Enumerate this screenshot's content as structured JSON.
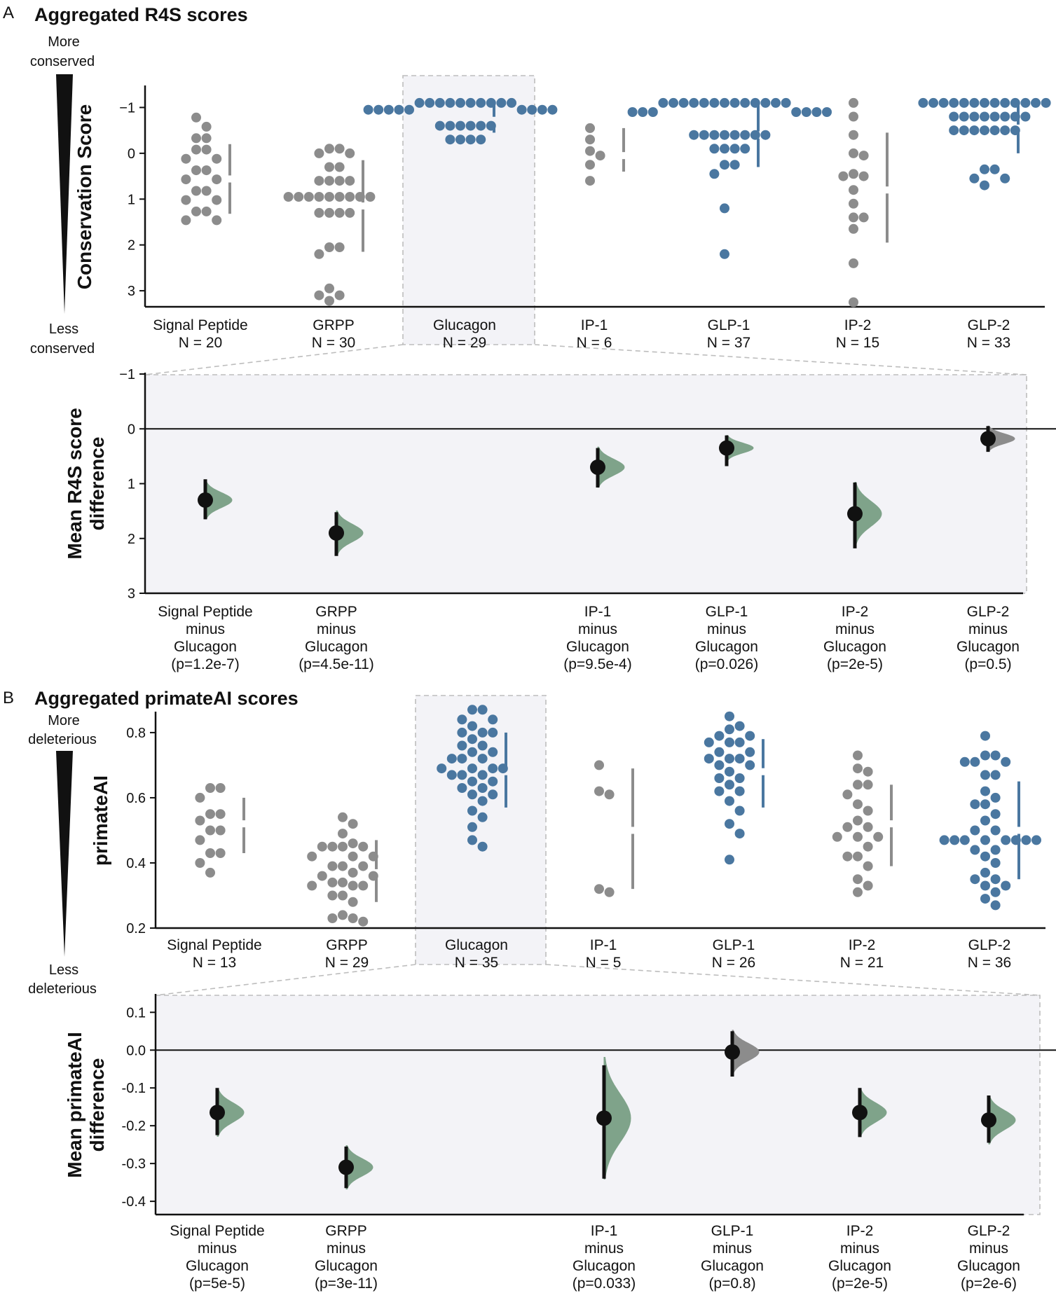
{
  "colors": {
    "grey": "#8c8c8c",
    "blue": "#4a77a0",
    "green": "#7fa38a",
    "grey_dist": "#9b9b9b",
    "black": "#111111"
  },
  "panels": {
    "a": {
      "letter": "A",
      "title": "Aggregated R4S scores",
      "side_top": [
        "More",
        "conserved"
      ],
      "side_bottom": [
        "Less",
        "conserved"
      ]
    },
    "b": {
      "letter": "B",
      "title": "Aggregated primateAI scores",
      "side_top": [
        "More",
        "deleterious"
      ],
      "side_bottom": [
        "Less",
        "deleterious"
      ]
    }
  },
  "chart_data": [
    {
      "id": "a_top",
      "type": "scatter",
      "title": "Aggregated R4S scores",
      "ylabel": "Conservation Score",
      "ylim": [
        3.35,
        -1.45
      ],
      "yticks": [
        -1,
        0,
        1,
        2,
        3
      ],
      "ytick_labels": [
        "−1",
        "0",
        "1",
        "2",
        "3"
      ],
      "reference": "Glucagon",
      "groups": [
        {
          "name": "Signal Peptide",
          "n_label": "N = 20",
          "color": "grey",
          "mean": 0.56,
          "ci": [
            -0.2,
            1.32
          ],
          "values": [
            -0.78,
            -0.58,
            -0.33,
            -0.33,
            -0.08,
            -0.08,
            0.12,
            0.12,
            0.37,
            0.37,
            0.57,
            0.57,
            0.82,
            0.82,
            1.02,
            1.02,
            1.27,
            1.27,
            1.46,
            1.46
          ]
        },
        {
          "name": "GRPP",
          "n_label": "N = 30",
          "color": "grey",
          "mean": 1.15,
          "ci": [
            0.15,
            2.15
          ],
          "values": [
            -0.1,
            -0.1,
            0.0,
            0.0,
            0.3,
            0.3,
            0.6,
            0.6,
            0.6,
            0.6,
            0.95,
            0.95,
            0.95,
            0.95,
            0.95,
            0.95,
            0.95,
            0.95,
            0.95,
            1.3,
            1.3,
            1.3,
            1.3,
            2.05,
            2.05,
            2.2,
            2.95,
            3.1,
            3.1,
            3.22
          ]
        },
        {
          "name": "Glucagon",
          "n_label": "N = 29",
          "color": "blue",
          "mean": -0.72,
          "ci": [
            -1.05,
            -0.45
          ],
          "values": [
            -1.1,
            -1.1,
            -1.1,
            -1.1,
            -1.1,
            -1.1,
            -1.1,
            -1.1,
            -1.1,
            -1.1,
            -0.95,
            -0.95,
            -0.95,
            -0.95,
            -0.95,
            -0.95,
            -0.95,
            -0.95,
            -0.95,
            -0.6,
            -0.6,
            -0.6,
            -0.6,
            -0.6,
            -0.6,
            -0.3,
            -0.3,
            -0.3,
            -0.3
          ]
        },
        {
          "name": "IP-1",
          "n_label": "N = 6",
          "color": "grey",
          "mean": 0.05,
          "ci": [
            -0.55,
            0.4
          ],
          "values": [
            -0.55,
            -0.3,
            -0.05,
            0.05,
            0.25,
            0.6
          ]
        },
        {
          "name": "GLP-1",
          "n_label": "N = 37",
          "color": "blue",
          "mean": -0.4,
          "ci": [
            -1.1,
            0.3
          ],
          "values": [
            -1.1,
            -1.1,
            -1.1,
            -1.1,
            -1.1,
            -1.1,
            -1.1,
            -1.1,
            -1.1,
            -1.1,
            -1.1,
            -1.1,
            -1.1,
            -0.9,
            -0.9,
            -0.9,
            -0.9,
            -0.9,
            -0.9,
            -0.9,
            -0.4,
            -0.4,
            -0.4,
            -0.4,
            -0.4,
            -0.4,
            -0.4,
            -0.4,
            -0.1,
            -0.1,
            -0.1,
            -0.1,
            0.25,
            0.25,
            0.45,
            1.2,
            2.2
          ]
        },
        {
          "name": "IP-2",
          "n_label": "N = 15",
          "color": "grey",
          "mean": 0.8,
          "ci": [
            -0.45,
            1.95
          ],
          "values": [
            -1.1,
            -0.8,
            -0.4,
            0.0,
            0.05,
            0.45,
            0.5,
            0.5,
            0.8,
            1.1,
            1.4,
            1.4,
            1.65,
            2.4,
            3.25
          ]
        },
        {
          "name": "GLP-2",
          "n_label": "N = 33",
          "color": "blue",
          "mean": -0.55,
          "ci": [
            -1.1,
            0.0
          ],
          "values": [
            -1.1,
            -1.1,
            -1.1,
            -1.1,
            -1.1,
            -1.1,
            -1.1,
            -1.1,
            -1.1,
            -1.1,
            -1.1,
            -1.1,
            -1.1,
            -0.8,
            -0.8,
            -0.8,
            -0.8,
            -0.8,
            -0.8,
            -0.8,
            -0.8,
            -0.5,
            -0.5,
            -0.5,
            -0.5,
            -0.5,
            -0.5,
            -0.5,
            0.35,
            0.35,
            0.55,
            0.55,
            0.7
          ]
        }
      ]
    },
    {
      "id": "a_bottom",
      "type": "scatter",
      "ylabel_lines": [
        "Mean R4S score",
        "difference"
      ],
      "ylim": [
        3.0,
        -1.0
      ],
      "yticks": [
        -1,
        0,
        1,
        2,
        3
      ],
      "ytick_labels": [
        "−1",
        "0",
        "1",
        "2",
        "3"
      ],
      "zero_line": 0,
      "comparisons": [
        {
          "group": "Signal Peptide",
          "label_lines": [
            "Signal Peptide",
            "minus",
            "Glucagon",
            "(p=1.2e-7)"
          ],
          "color": "green",
          "mean": 1.3,
          "ci": [
            0.92,
            1.65
          ],
          "spread": 0.3,
          "height": 1.0
        },
        {
          "group": "GRPP",
          "label_lines": [
            "GRPP",
            "minus",
            "Glucagon",
            "(p=4.5e-11)"
          ],
          "color": "green",
          "mean": 1.9,
          "ci": [
            1.52,
            2.32
          ],
          "spread": 0.35,
          "height": 1.0
        },
        {
          "group": "IP-1",
          "label_lines": [
            "IP-1",
            "minus",
            "Glucagon",
            "(p=9.5e-4)"
          ],
          "color": "green",
          "mean": 0.7,
          "ci": [
            0.35,
            1.07
          ],
          "spread": 0.32,
          "height": 1.0
        },
        {
          "group": "GLP-1",
          "label_lines": [
            "GLP-1",
            "minus",
            "Glucagon",
            "(p=0.026)"
          ],
          "color": "green",
          "mean": 0.35,
          "ci": [
            0.12,
            0.68
          ],
          "spread": 0.2,
          "height": 1.0
        },
        {
          "group": "IP-2",
          "label_lines": [
            "IP-2",
            "minus",
            "Glucagon",
            "(p=2e-5)"
          ],
          "color": "green",
          "mean": 1.55,
          "ci": [
            0.98,
            2.18
          ],
          "spread": 0.5,
          "height": 1.0
        },
        {
          "group": "GLP-2",
          "label_lines": [
            "GLP-2",
            "minus",
            "Glucagon",
            "(p=0.5)"
          ],
          "color": "grey",
          "mean": 0.18,
          "ci": [
            -0.05,
            0.42
          ],
          "spread": 0.2,
          "height": 1.0
        }
      ]
    },
    {
      "id": "b_top",
      "type": "scatter",
      "title": "Aggregated primateAI scores",
      "ylabel": "primateAI",
      "ylim": [
        0.2,
        0.86
      ],
      "yticks": [
        0.2,
        0.4,
        0.6,
        0.8
      ],
      "ytick_labels": [
        "0.2",
        "0.4",
        "0.6",
        "0.8"
      ],
      "reference": "Glucagon",
      "groups": [
        {
          "name": "Signal Peptide",
          "n_label": "N = 13",
          "color": "grey",
          "mean": 0.52,
          "ci": [
            0.43,
            0.6
          ],
          "values": [
            0.63,
            0.63,
            0.6,
            0.55,
            0.55,
            0.53,
            0.5,
            0.5,
            0.47,
            0.43,
            0.43,
            0.4,
            0.37
          ]
        },
        {
          "name": "GRPP",
          "n_label": "N = 29",
          "color": "grey",
          "mean": 0.37,
          "ci": [
            0.28,
            0.47
          ],
          "values": [
            0.54,
            0.52,
            0.49,
            0.46,
            0.45,
            0.45,
            0.45,
            0.45,
            0.42,
            0.42,
            0.42,
            0.39,
            0.39,
            0.39,
            0.37,
            0.36,
            0.36,
            0.34,
            0.34,
            0.33,
            0.33,
            0.33,
            0.3,
            0.3,
            0.28,
            0.24,
            0.23,
            0.23,
            0.22
          ]
        },
        {
          "name": "Glucagon",
          "n_label": "N = 35",
          "color": "blue",
          "mean": 0.68,
          "ci": [
            0.57,
            0.8
          ],
          "values": [
            0.87,
            0.87,
            0.84,
            0.84,
            0.82,
            0.8,
            0.8,
            0.8,
            0.78,
            0.76,
            0.76,
            0.74,
            0.74,
            0.72,
            0.72,
            0.72,
            0.69,
            0.69,
            0.69,
            0.69,
            0.67,
            0.67,
            0.67,
            0.65,
            0.65,
            0.63,
            0.63,
            0.61,
            0.61,
            0.59,
            0.56,
            0.54,
            0.51,
            0.47,
            0.45
          ]
        },
        {
          "name": "IP-1",
          "n_label": "N = 5",
          "color": "grey",
          "mean": 0.5,
          "ci": [
            0.32,
            0.69
          ],
          "values": [
            0.7,
            0.62,
            0.61,
            0.32,
            0.31
          ]
        },
        {
          "name": "GLP-1",
          "n_label": "N = 26",
          "color": "blue",
          "mean": 0.68,
          "ci": [
            0.57,
            0.78
          ],
          "values": [
            0.85,
            0.82,
            0.81,
            0.79,
            0.79,
            0.77,
            0.77,
            0.77,
            0.74,
            0.74,
            0.72,
            0.72,
            0.72,
            0.7,
            0.7,
            0.68,
            0.66,
            0.66,
            0.64,
            0.62,
            0.62,
            0.59,
            0.56,
            0.52,
            0.49,
            0.41
          ]
        },
        {
          "name": "IP-2",
          "n_label": "N = 21",
          "color": "grey",
          "mean": 0.52,
          "ci": [
            0.39,
            0.64
          ],
          "values": [
            0.73,
            0.69,
            0.68,
            0.64,
            0.64,
            0.61,
            0.58,
            0.56,
            0.53,
            0.51,
            0.51,
            0.48,
            0.48,
            0.48,
            0.45,
            0.42,
            0.42,
            0.39,
            0.35,
            0.33,
            0.31
          ]
        },
        {
          "name": "GLP-2",
          "n_label": "N = 36",
          "color": "blue",
          "mean": 0.5,
          "ci": [
            0.35,
            0.65
          ],
          "values": [
            0.79,
            0.73,
            0.73,
            0.71,
            0.71,
            0.71,
            0.67,
            0.67,
            0.62,
            0.6,
            0.58,
            0.58,
            0.55,
            0.53,
            0.5,
            0.5,
            0.47,
            0.47,
            0.47,
            0.47,
            0.47,
            0.47,
            0.47,
            0.47,
            0.44,
            0.44,
            0.42,
            0.4,
            0.37,
            0.35,
            0.35,
            0.33,
            0.33,
            0.31,
            0.29,
            0.27
          ]
        }
      ]
    },
    {
      "id": "b_bottom",
      "type": "scatter",
      "ylabel_lines": [
        "Mean primateAI",
        "difference"
      ],
      "ylim": [
        -0.435,
        0.145
      ],
      "yticks": [
        0.1,
        0.0,
        -0.1,
        -0.2,
        -0.3,
        -0.4
      ],
      "ytick_labels": [
        "0.1",
        "0.0",
        "-0.1",
        "-0.2",
        "-0.3",
        "-0.4"
      ],
      "zero_line": 0,
      "comparisons": [
        {
          "group": "Signal Peptide",
          "label_lines": [
            "Signal Peptide",
            "minus",
            "Glucagon",
            "(p=5e-5)"
          ],
          "color": "green",
          "mean": -0.165,
          "ci": [
            -0.225,
            -0.1
          ],
          "spread": 0.055,
          "height": 1.0
        },
        {
          "group": "GRPP",
          "label_lines": [
            "GRPP",
            "minus",
            "Glucagon",
            "(p=3e-11)"
          ],
          "color": "green",
          "mean": -0.31,
          "ci": [
            -0.365,
            -0.255
          ],
          "spread": 0.05,
          "height": 1.0
        },
        {
          "group": "IP-1",
          "label_lines": [
            "IP-1",
            "minus",
            "Glucagon",
            "(p=0.033)"
          ],
          "color": "green",
          "mean": -0.18,
          "ci": [
            -0.34,
            -0.04
          ],
          "spread": 0.14,
          "height": 1.0
        },
        {
          "group": "GLP-1",
          "label_lines": [
            "GLP-1",
            "minus",
            "Glucagon",
            "(p=0.8)"
          ],
          "color": "grey",
          "mean": -0.005,
          "ci": [
            -0.07,
            0.05
          ],
          "spread": 0.05,
          "height": 1.0
        },
        {
          "group": "IP-2",
          "label_lines": [
            "IP-2",
            "minus",
            "Glucagon",
            "(p=2e-5)"
          ],
          "color": "green",
          "mean": -0.165,
          "ci": [
            -0.23,
            -0.1
          ],
          "spread": 0.055,
          "height": 1.0
        },
        {
          "group": "GLP-2",
          "label_lines": [
            "GLP-2",
            "minus",
            "Glucagon",
            "(p=2e-6)"
          ],
          "color": "green",
          "mean": -0.185,
          "ci": [
            -0.245,
            -0.12
          ],
          "spread": 0.055,
          "height": 1.0
        }
      ]
    }
  ]
}
